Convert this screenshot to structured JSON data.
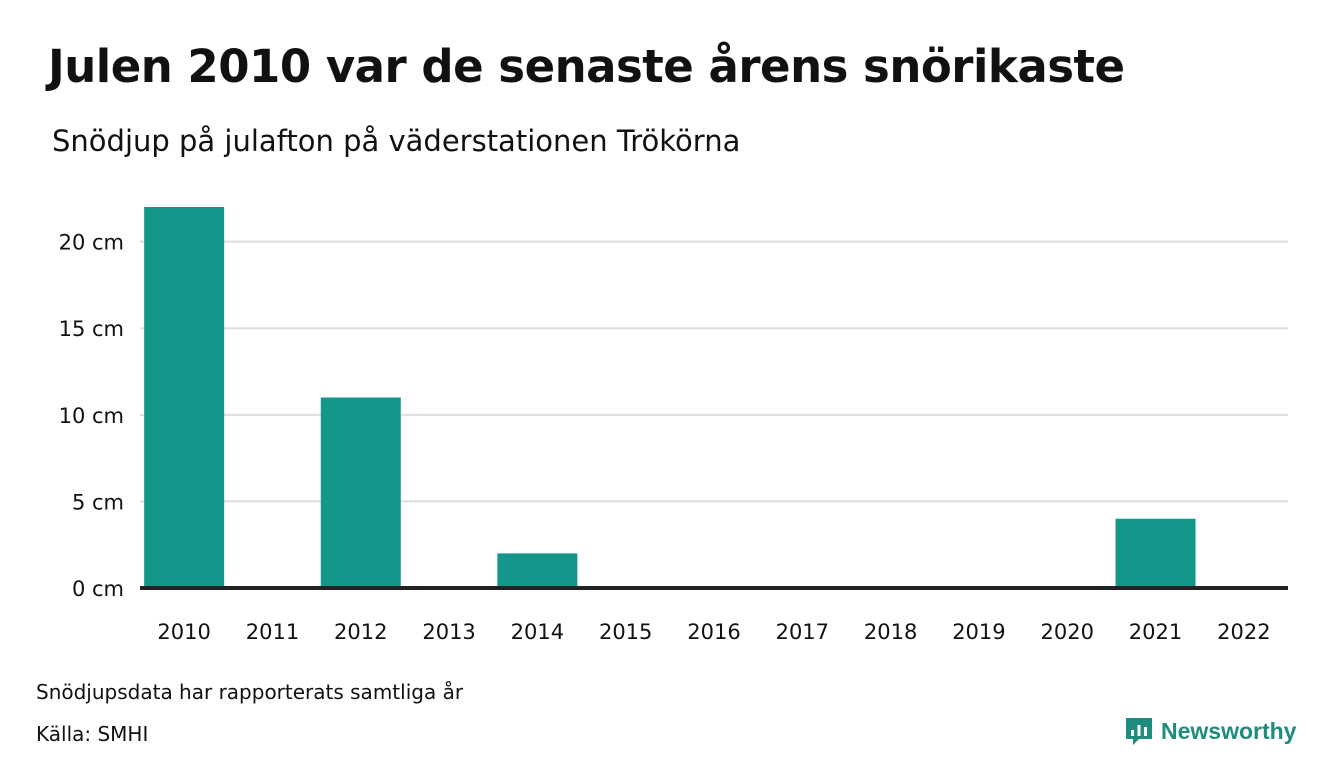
{
  "title": "Julen 2010 var de senaste årens snörikaste",
  "subtitle": "Snödjup på julafton på väderstationen Trökörna",
  "note": "Snödjupsdata har rapporterats samtliga år",
  "source": "Källa: SMHI",
  "brand": {
    "name": "Newsworthy",
    "logo_icon": "newsworthy-logo-icon",
    "color": "#1e8c7e"
  },
  "colors": {
    "bar": "#14968a",
    "grid": "#dddddd",
    "baseline": "#222222",
    "text": "#111111"
  },
  "chart_data": {
    "type": "bar",
    "categories": [
      "2010",
      "2011",
      "2012",
      "2013",
      "2014",
      "2015",
      "2016",
      "2017",
      "2018",
      "2019",
      "2020",
      "2021",
      "2022"
    ],
    "values": [
      22,
      0,
      11,
      0,
      2,
      0,
      0,
      0,
      0,
      0,
      0,
      4,
      0
    ],
    "unit": "cm",
    "yticks": [
      0,
      5,
      10,
      15,
      20
    ],
    "ytick_labels": [
      "0 cm",
      "5 cm",
      "10 cm",
      "15 cm",
      "20 cm"
    ],
    "ylim": [
      0,
      22
    ],
    "grid": true,
    "legend": false
  }
}
